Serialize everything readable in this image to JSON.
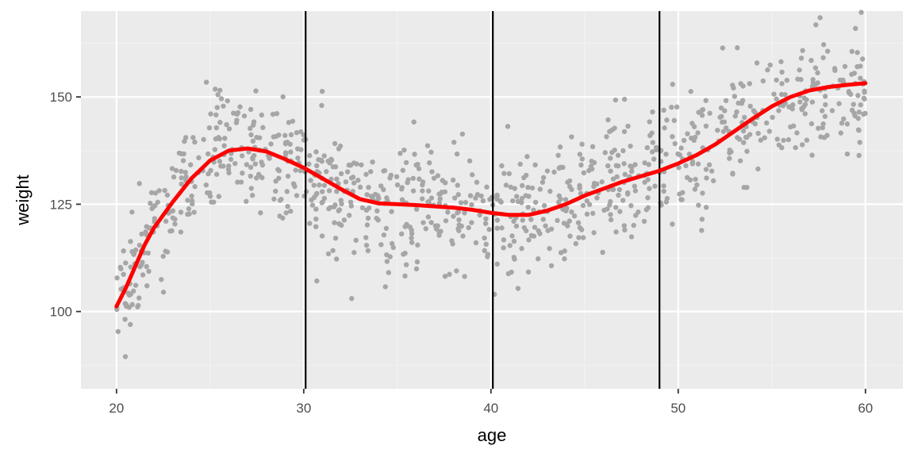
{
  "chart_data": {
    "type": "scatter",
    "title": "",
    "xlabel": "age",
    "ylabel": "weight",
    "xlim": [
      18.1,
      62.0
    ],
    "ylim": [
      82.0,
      170.0
    ],
    "x_ticks": [
      20,
      30,
      40,
      50,
      60
    ],
    "x_tick_labels": [
      "20",
      "30",
      "40",
      "50",
      "60"
    ],
    "y_ticks": [
      100,
      125,
      150
    ],
    "y_tick_labels": [
      "100",
      "125",
      "150"
    ],
    "grid": true,
    "legend": "none",
    "colors": {
      "panel_background": "#ebebeb",
      "grid_major": "#ffffff",
      "grid_minor": "#f2f2f2",
      "points": "#a6a6a6",
      "smooth_line": "#ff0000",
      "vlines": "#000000",
      "tick_label": "#4d4d4d",
      "tick_mark": "#333333"
    },
    "vlines": [
      30.1,
      40.1,
      49.0
    ],
    "smooth_line": {
      "x": [
        20.0,
        20.5,
        21.0,
        21.5,
        22.0,
        23.0,
        24.0,
        25.0,
        26.0,
        27.0,
        28.0,
        29.0,
        30.0,
        31.0,
        32.0,
        33.0,
        34.0,
        35.0,
        36.0,
        37.0,
        38.0,
        39.0,
        40.0,
        41.0,
        42.0,
        43.0,
        44.0,
        45.0,
        46.0,
        47.0,
        48.0,
        49.0,
        50.0,
        51.0,
        52.0,
        53.0,
        54.0,
        55.0,
        56.0,
        57.0,
        58.0,
        59.0,
        60.0
      ],
      "y": [
        101.2,
        105.5,
        110.5,
        115.5,
        119.5,
        125.5,
        131.0,
        135.2,
        137.5,
        138.0,
        137.3,
        135.5,
        133.5,
        131.0,
        128.5,
        126.2,
        125.2,
        125.0,
        124.8,
        124.5,
        124.2,
        123.7,
        123.0,
        122.5,
        122.5,
        123.5,
        125.0,
        127.0,
        128.6,
        130.2,
        131.5,
        132.8,
        134.5,
        136.5,
        139.0,
        142.0,
        145.0,
        147.8,
        150.0,
        151.5,
        152.3,
        152.8,
        153.2
      ]
    },
    "scatter": {
      "x_range": [
        20.0,
        60.0
      ],
      "count": 1000,
      "noise_sd": 7.5
    }
  }
}
